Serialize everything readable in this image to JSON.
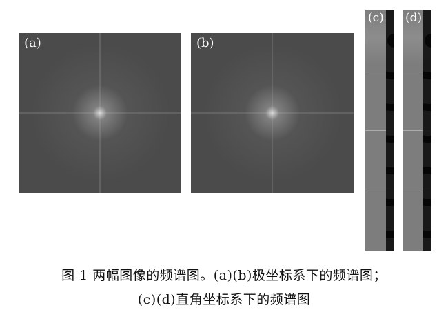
{
  "figure": {
    "panels": [
      {
        "id": "a",
        "label": "(a)"
      },
      {
        "id": "b",
        "label": "(b)"
      },
      {
        "id": "c",
        "label": "(c)"
      },
      {
        "id": "d",
        "label": "(d)"
      }
    ],
    "caption": {
      "line1": "图 1  两幅图像的频谱图。(a)(b)极坐标系下的频谱图；",
      "line2": "(c)(d)直角坐标系下的频谱图"
    }
  }
}
